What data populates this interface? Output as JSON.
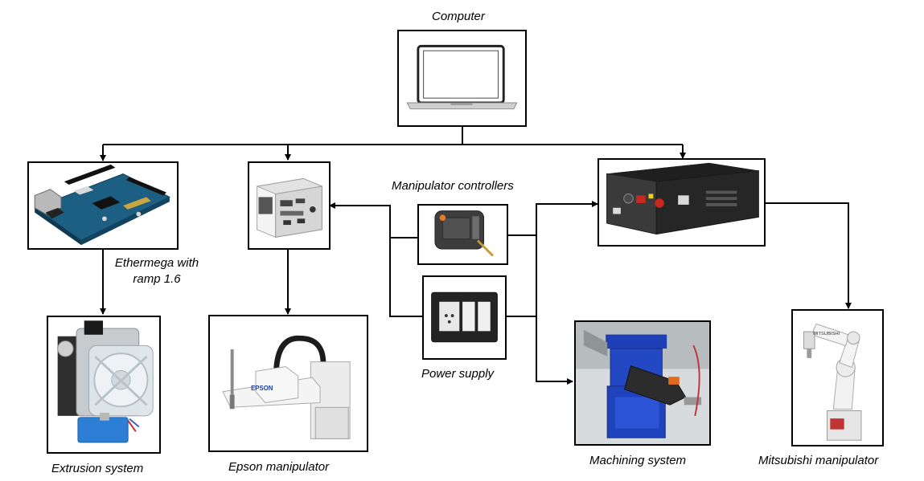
{
  "labels": {
    "computer": "Computer",
    "manipulator_controllers": "Manipulator controllers",
    "ethermega_line1": "Ethermega with",
    "ethermega_line2": "ramp 1.6",
    "extrusion_system": "Extrusion system",
    "epson_manipulator": "Epson manipulator",
    "power_supply": "Power supply",
    "machining_system": "Machining system",
    "mitsubishi_manipulator": "Mitsubishi manipulator"
  },
  "decor": {
    "epson_logo": "EPSON",
    "mitsubishi_logo": "MITSUBISHI"
  }
}
